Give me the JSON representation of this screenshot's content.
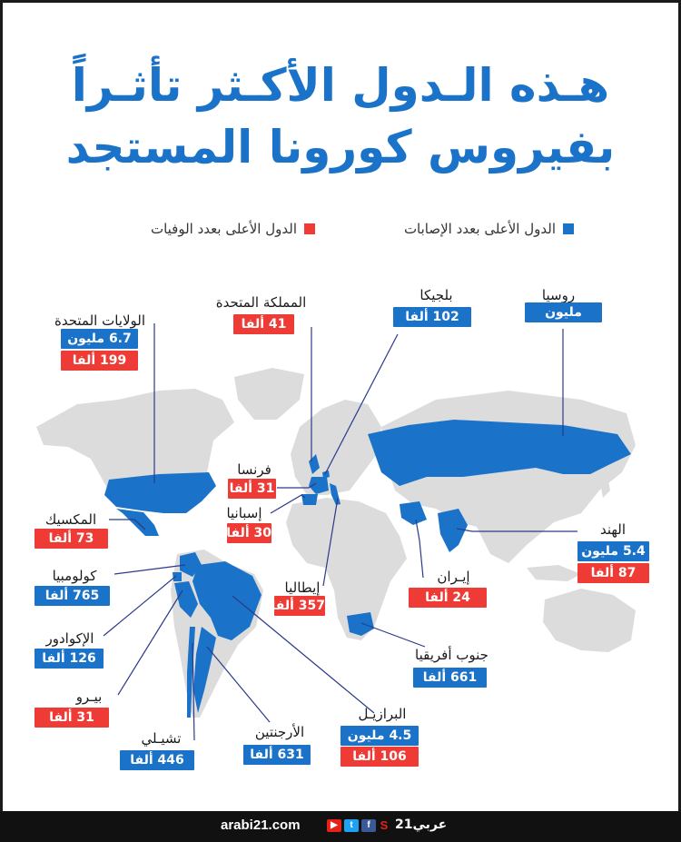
{
  "title": {
    "line1": "هـذه الـدول الأكـثر تأثـراً",
    "line2": "بفيروس كورونا المستجد"
  },
  "legend": {
    "cases": {
      "label": "الدول الأعلى بعدد الإصابات",
      "color": "#1a73c8"
    },
    "deaths": {
      "label": "الدول الأعلى بعدد الوفيات",
      "color": "#ef3b36"
    }
  },
  "countries": {
    "usa": {
      "name": "الولايات المتحدة",
      "cases": "6.7 مليون",
      "deaths": "199 ألفا"
    },
    "uk": {
      "name": "المملكة المتحدة",
      "deaths": "41 ألفا"
    },
    "belgium": {
      "name": "بلجيكا",
      "deaths": "102 ألفا"
    },
    "russia": {
      "name": "روسيا",
      "cases": "مليون"
    },
    "france": {
      "name": "فرنسا",
      "deaths": "31 ألفا"
    },
    "spain": {
      "name": "إسبانيا",
      "deaths": "30 ألفا"
    },
    "mexico": {
      "name": "المكسيك",
      "deaths": "73 ألفا"
    },
    "italy": {
      "name": "إيطاليا",
      "deaths": "357 ألفا"
    },
    "india": {
      "name": "الهند",
      "cases": "5.4 مليون",
      "deaths": "87 ألفا"
    },
    "iran": {
      "name": "إيـران",
      "deaths": "24 ألفا"
    },
    "colombia": {
      "name": "كولومبيا",
      "cases": "765 ألفا"
    },
    "ecuador": {
      "name": "الإكوادور",
      "cases": "126 ألفا"
    },
    "peru": {
      "name": "بيـرو",
      "deaths": "31 ألفا"
    },
    "chile": {
      "name": "تشيـلي",
      "cases": "446 ألفا"
    },
    "argentina": {
      "name": "الأرجنتين",
      "cases": "631 ألفا"
    },
    "brazil": {
      "name": "البرازيـل",
      "cases": "4.5 مليون",
      "deaths": "106 ألفا"
    },
    "south_africa": {
      "name": "جنوب أفريقيا",
      "cases": "661 ألفا"
    }
  },
  "footer": {
    "site": "arabi21.com",
    "brand": "عربي21"
  },
  "colors": {
    "highlight": "#1a73c8",
    "land": "#dcdcdc",
    "leader": "#2b3a8a"
  }
}
